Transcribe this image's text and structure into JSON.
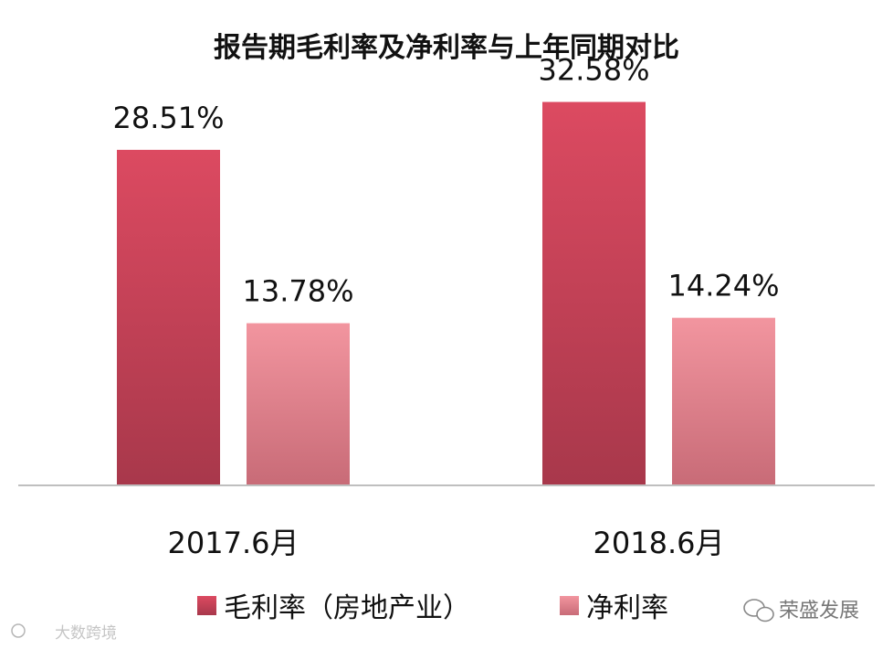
{
  "chart_data": {
    "type": "bar",
    "title": "报告期毛利率及净利率与上年同期对比",
    "categories": [
      "2017.6月",
      "2018.6月"
    ],
    "series": [
      {
        "name": "毛利率（房地产业）",
        "values": [
          28.51,
          32.58
        ],
        "labels": [
          "28.51%",
          "32.58%"
        ],
        "color": "#d6485e"
      },
      {
        "name": "净利率",
        "values": [
          13.78,
          14.24
        ],
        "labels": [
          "13.78%",
          "14.24%"
        ],
        "color": "#ec8f99"
      }
    ],
    "ylim": [
      0,
      40
    ],
    "grid": false,
    "legend": "bottom"
  },
  "watermarks": {
    "left": "大数跨境",
    "right": "荣盛发展"
  }
}
